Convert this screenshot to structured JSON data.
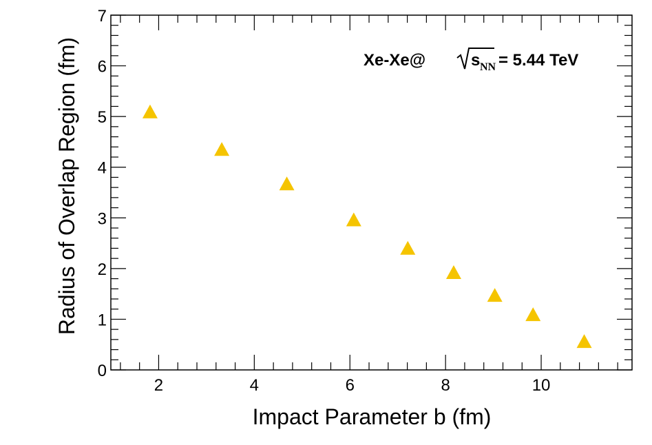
{
  "chart_data": {
    "type": "scatter",
    "title": "",
    "xlabel": "Impact Parameter b (fm)",
    "ylabel": "Radius of Overlap Region (fm)",
    "xlim": [
      1,
      11.9
    ],
    "ylim": [
      0,
      7
    ],
    "xticks": [
      2,
      4,
      6,
      8,
      10
    ],
    "yticks": [
      0,
      1,
      2,
      3,
      4,
      5,
      6,
      7
    ],
    "annotation": {
      "system": "Xe-Xe@",
      "energy_symbol": "s",
      "energy_subscript": "NN",
      "energy_value": "= 5.44 TeV"
    },
    "series": [
      {
        "name": "Xe-Xe",
        "marker": "triangle-up",
        "color": "#f5c400",
        "x": [
          1.82,
          3.32,
          4.68,
          6.08,
          7.21,
          8.17,
          9.03,
          9.83,
          10.9
        ],
        "y": [
          5.1,
          4.36,
          3.68,
          2.97,
          2.41,
          1.93,
          1.48,
          1.1,
          0.57
        ]
      }
    ]
  }
}
